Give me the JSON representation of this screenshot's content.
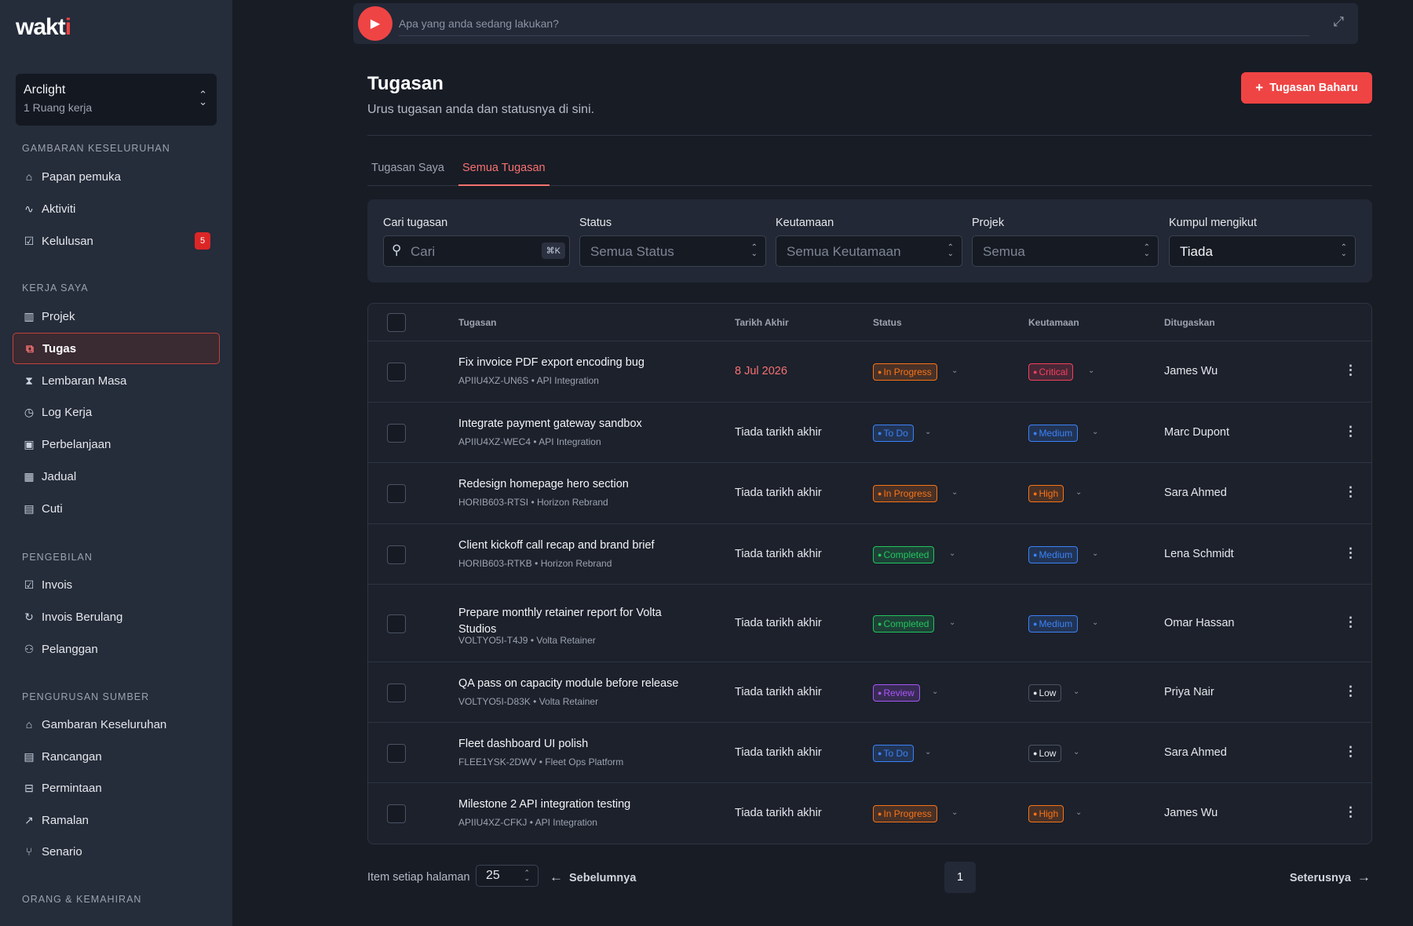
{
  "app": {
    "logo": "wakti"
  },
  "workspace": {
    "name": "Arclight",
    "subtitle": "1 Ruang kerja"
  },
  "sidebar": {
    "sections": [
      {
        "title": "GAMBARAN KESELURUHAN",
        "items": [
          {
            "label": "Papan pemuka",
            "icon": "home-icon",
            "glyph": "⌂"
          },
          {
            "label": "Aktiviti",
            "icon": "activity-icon",
            "glyph": "∿"
          },
          {
            "label": "Kelulusan",
            "icon": "clipboard-check-icon",
            "glyph": "☑",
            "badge": "5"
          }
        ]
      },
      {
        "title": "KERJA SAYA",
        "items": [
          {
            "label": "Projek",
            "icon": "building-icon",
            "glyph": "▥"
          },
          {
            "label": "Tugas",
            "icon": "tasks-icon",
            "glyph": "⧉",
            "active": true
          },
          {
            "label": "Lembaran Masa",
            "icon": "hourglass-icon",
            "glyph": "⧗"
          },
          {
            "label": "Log Kerja",
            "icon": "alarm-clock-icon",
            "glyph": "◷"
          },
          {
            "label": "Perbelanjaan",
            "icon": "banknote-icon",
            "glyph": "▣"
          },
          {
            "label": "Jadual",
            "icon": "grid-icon",
            "glyph": "▦"
          },
          {
            "label": "Cuti",
            "icon": "calendar-icon",
            "glyph": "▤"
          }
        ]
      },
      {
        "title": "PENGEBILAN",
        "items": [
          {
            "label": "Invois",
            "icon": "invoice-icon",
            "glyph": "☑"
          },
          {
            "label": "Invois Berulang",
            "icon": "refresh-icon",
            "glyph": "↻"
          },
          {
            "label": "Pelanggan",
            "icon": "user-icon",
            "glyph": "⚇"
          }
        ]
      },
      {
        "title": "PENGURUSAN SUMBER",
        "items": [
          {
            "label": "Gambaran Keseluruhan",
            "icon": "home-icon",
            "glyph": "⌂"
          },
          {
            "label": "Rancangan",
            "icon": "calendar-plus-icon",
            "glyph": "▤"
          },
          {
            "label": "Permintaan",
            "icon": "inbox-icon",
            "glyph": "⊟"
          },
          {
            "label": "Ramalan",
            "icon": "trending-up-icon",
            "glyph": "↗"
          },
          {
            "label": "Senario",
            "icon": "git-branch-icon",
            "glyph": "⑂"
          }
        ]
      },
      {
        "title": "ORANG & KEMAHIRAN",
        "items": []
      }
    ]
  },
  "timer": {
    "placeholder": "Apa yang anda sedang lakukan?"
  },
  "header": {
    "title": "Tugasan",
    "subtitle": "Urus tugasan anda dan statusnya di sini.",
    "new_button": "Tugasan Baharu"
  },
  "tabs": [
    {
      "label": "Tugasan Saya"
    },
    {
      "label": "Semua Tugasan",
      "active": true
    }
  ],
  "filters": {
    "search": {
      "label": "Cari tugasan",
      "placeholder": "Cari",
      "shortcut": "⌘K"
    },
    "status": {
      "label": "Status",
      "value": "Semua Status"
    },
    "priority": {
      "label": "Keutamaan",
      "value": "Semua Keutamaan"
    },
    "project": {
      "label": "Projek",
      "value": "Semua"
    },
    "group": {
      "label": "Kumpul mengikut",
      "value": "Tiada"
    }
  },
  "table": {
    "columns": {
      "task": "Tugasan",
      "due": "Tarikh Akhir",
      "status": "Status",
      "priority": "Keutamaan",
      "assignee": "Ditugaskan"
    },
    "rows": [
      {
        "name": "Fix invoice PDF export encoding bug",
        "code": "APIIU4XZ-UN6S",
        "project": "API Integration",
        "due": "8 Jul 2026",
        "overdue": true,
        "status": "In Progress",
        "priority": "Critical",
        "assignee": "James Wu"
      },
      {
        "name": "Integrate payment gateway sandbox",
        "code": "APIIU4XZ-WEC4",
        "project": "API Integration",
        "due": "Tiada tarikh akhir",
        "status": "To Do",
        "priority": "Medium",
        "assignee": "Marc Dupont"
      },
      {
        "name": "Redesign homepage hero section",
        "code": "HORIB603-RTSI",
        "project": "Horizon Rebrand",
        "due": "Tiada tarikh akhir",
        "status": "In Progress",
        "priority": "High",
        "assignee": "Sara Ahmed"
      },
      {
        "name": "Client kickoff call recap and brand brief",
        "code": "HORIB603-RTKB",
        "project": "Horizon Rebrand",
        "due": "Tiada tarikh akhir",
        "status": "Completed",
        "priority": "Medium",
        "assignee": "Lena Schmidt"
      },
      {
        "name": "Prepare monthly retainer report for Volta Studios",
        "code": "VOLTYO5I-T4J9",
        "project": "Volta Retainer",
        "due": "Tiada tarikh akhir",
        "status": "Completed",
        "priority": "Medium",
        "assignee": "Omar Hassan"
      },
      {
        "name": "QA pass on capacity module before release",
        "code": "VOLTYO5I-D83K",
        "project": "Volta Retainer",
        "due": "Tiada tarikh akhir",
        "status": "Review",
        "priority": "Low",
        "assignee": "Priya Nair"
      },
      {
        "name": "Fleet dashboard UI polish",
        "code": "FLEE1YSK-2DWV",
        "project": "Fleet Ops Platform",
        "due": "Tiada tarikh akhir",
        "status": "To Do",
        "priority": "Low",
        "assignee": "Sara Ahmed"
      },
      {
        "name": "Milestone 2 API integration testing",
        "code": "APIIU4XZ-CFKJ",
        "project": "API Integration",
        "due": "Tiada tarikh akhir",
        "status": "In Progress",
        "priority": "High",
        "assignee": "James Wu"
      }
    ]
  },
  "pagination": {
    "per_page_label": "Item setiap halaman",
    "per_page": "25",
    "prev": "Sebelumnya",
    "page": "1",
    "next": "Seterusnya"
  },
  "colors": {
    "accent": "#ef4444",
    "in_progress": "#f97316",
    "to_do": "#3b82f6",
    "completed": "#22c55e",
    "review": "#a855f7",
    "critical": "#f43f5e",
    "low": "#9ca3af"
  }
}
